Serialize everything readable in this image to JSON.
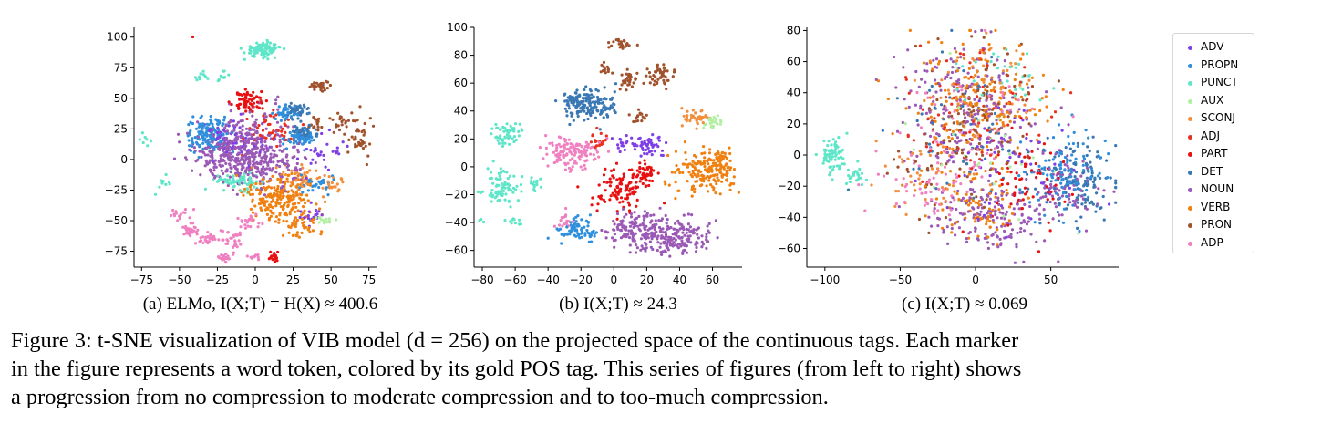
{
  "figure": {
    "caption_lines": [
      "Figure 3:  t-SNE visualization of VIB model (d = 256) on the projected space of the continuous tags. Each marker",
      "in the figure represents a word token, colored by its gold POS tag. This series of figures (from left to right) shows",
      "a progression from no compression to moderate compression and to too-much compression."
    ]
  },
  "legend": {
    "placement": "right",
    "entries": [
      {
        "label": "ADV",
        "color": "#7f3fe6"
      },
      {
        "label": "PROPN",
        "color": "#2f8fdc"
      },
      {
        "label": "PUNCT",
        "color": "#5fe6c8"
      },
      {
        "label": "AUX",
        "color": "#b0f0a0"
      },
      {
        "label": "SCONJ",
        "color": "#f28e3c"
      },
      {
        "label": "ADJ",
        "color": "#e8301e"
      },
      {
        "label": "PART",
        "color": "#e81010"
      },
      {
        "label": "DET",
        "color": "#3a78b4"
      },
      {
        "label": "NOUN",
        "color": "#9b59b6"
      },
      {
        "label": "VERB",
        "color": "#f08010"
      },
      {
        "label": "PRON",
        "color": "#a0522d"
      },
      {
        "label": "ADP",
        "color": "#f080c0"
      }
    ]
  },
  "chart_data": [
    {
      "type": "scatter",
      "caption": "(a) ELMo, I(X;T) = H(X) ≈ 400.6",
      "xlim": [
        -80,
        80
      ],
      "ylim": [
        -88,
        108
      ],
      "xticks": [
        -75,
        -50,
        -25,
        0,
        25,
        50,
        75
      ],
      "yticks": [
        -75,
        -50,
        -25,
        0,
        25,
        50,
        75,
        100
      ],
      "grid": false,
      "clusters": [
        {
          "tag": "PUNCT",
          "cx": 5,
          "cy": 90,
          "sx": 6,
          "sy": 3,
          "n": 110
        },
        {
          "tag": "PUNCT",
          "cx": -12,
          "cy": -18,
          "sx": 8,
          "sy": 3,
          "n": 70
        },
        {
          "tag": "PUNCT",
          "cx": -35,
          "cy": 67,
          "sx": 2,
          "sy": 2,
          "n": 12
        },
        {
          "tag": "PUNCT",
          "cx": -22,
          "cy": 68,
          "sx": 2,
          "sy": 2,
          "n": 10
        },
        {
          "tag": "PUNCT",
          "cx": -60,
          "cy": -20,
          "sx": 3,
          "sy": 3,
          "n": 10
        },
        {
          "tag": "PUNCT",
          "cx": -72,
          "cy": 15,
          "sx": 3,
          "sy": 3,
          "n": 8
        },
        {
          "tag": "PROPN",
          "cx": -30,
          "cy": 20,
          "sx": 8,
          "sy": 7,
          "n": 150
        },
        {
          "tag": "PROPN",
          "cx": 30,
          "cy": 18,
          "sx": 5,
          "sy": 4,
          "n": 60
        },
        {
          "tag": "PROPN",
          "cx": 20,
          "cy": 38,
          "sx": 4,
          "sy": 3,
          "n": 40
        },
        {
          "tag": "PROPN",
          "cx": 40,
          "cy": -20,
          "sx": 5,
          "sy": 4,
          "n": 30
        },
        {
          "tag": "DET",
          "cx": 28,
          "cy": 40,
          "sx": 4,
          "sy": 3,
          "n": 45
        },
        {
          "tag": "DET",
          "cx": 32,
          "cy": 22,
          "sx": 4,
          "sy": 3,
          "n": 40
        },
        {
          "tag": "NOUN",
          "cx": -15,
          "cy": 5,
          "sx": 12,
          "sy": 10,
          "n": 260
        },
        {
          "tag": "NOUN",
          "cx": 10,
          "cy": -5,
          "sx": 12,
          "sy": 10,
          "n": 130
        },
        {
          "tag": "NOUN",
          "cx": 0,
          "cy": 20,
          "sx": 14,
          "sy": 12,
          "n": 110
        },
        {
          "tag": "VERB",
          "cx": 15,
          "cy": -30,
          "sx": 12,
          "sy": 10,
          "n": 220
        },
        {
          "tag": "VERB",
          "cx": 32,
          "cy": -55,
          "sx": 6,
          "sy": 5,
          "n": 40
        },
        {
          "tag": "SCONJ",
          "cx": 30,
          "cy": -15,
          "sx": 6,
          "sy": 5,
          "n": 40
        },
        {
          "tag": "SCONJ",
          "cx": 52,
          "cy": -20,
          "sx": 5,
          "sy": 4,
          "n": 20
        },
        {
          "tag": "ADP",
          "cx": -43,
          "cy": -58,
          "sx": 3,
          "sy": 3,
          "n": 30
        },
        {
          "tag": "ADP",
          "cx": -30,
          "cy": -65,
          "sx": 3,
          "sy": 3,
          "n": 30
        },
        {
          "tag": "ADP",
          "cx": -15,
          "cy": -65,
          "sx": 4,
          "sy": 4,
          "n": 30
        },
        {
          "tag": "ADP",
          "cx": -20,
          "cy": -80,
          "sx": 4,
          "sy": 2,
          "n": 25
        },
        {
          "tag": "ADP",
          "cx": 0,
          "cy": -80,
          "sx": 2,
          "sy": 1,
          "n": 10
        },
        {
          "tag": "ADP",
          "cx": -50,
          "cy": -45,
          "sx": 3,
          "sy": 3,
          "n": 15
        },
        {
          "tag": "ADP",
          "cx": -5,
          "cy": -52,
          "sx": 4,
          "sy": 3,
          "n": 20
        },
        {
          "tag": "PART",
          "cx": -5,
          "cy": 48,
          "sx": 5,
          "sy": 4,
          "n": 70
        },
        {
          "tag": "PART",
          "cx": 12,
          "cy": -80,
          "sx": 2,
          "sy": 2,
          "n": 18
        },
        {
          "tag": "PART",
          "cx": -42,
          "cy": 100,
          "sx": 0.5,
          "sy": 0.5,
          "n": 1
        },
        {
          "tag": "ADJ",
          "cx": 10,
          "cy": 25,
          "sx": 10,
          "sy": 8,
          "n": 50
        },
        {
          "tag": "PRON",
          "cx": 43,
          "cy": 60,
          "sx": 3,
          "sy": 2,
          "n": 30
        },
        {
          "tag": "PRON",
          "cx": 68,
          "cy": 20,
          "sx": 4,
          "sy": 9,
          "n": 40
        },
        {
          "tag": "PRON",
          "cx": 55,
          "cy": 30,
          "sx": 3,
          "sy": 5,
          "n": 20
        },
        {
          "tag": "PRON",
          "cx": 40,
          "cy": 30,
          "sx": 3,
          "sy": 3,
          "n": 15
        },
        {
          "tag": "ADV",
          "cx": -15,
          "cy": 15,
          "sx": 10,
          "sy": 8,
          "n": 60
        },
        {
          "tag": "ADV",
          "cx": 38,
          "cy": -45,
          "sx": 4,
          "sy": 3,
          "n": 20
        },
        {
          "tag": "ADV",
          "cx": 45,
          "cy": 5,
          "sx": 10,
          "sy": 8,
          "n": 30
        },
        {
          "tag": "AUX",
          "cx": 45,
          "cy": -50,
          "sx": 3,
          "sy": 2,
          "n": 15
        }
      ]
    },
    {
      "type": "scatter",
      "caption": "(b) I(X;T) ≈ 24.3",
      "xlim": [
        -85,
        78
      ],
      "ylim": [
        -72,
        100
      ],
      "xticks": [
        -80,
        -60,
        -40,
        -20,
        0,
        20,
        40,
        60
      ],
      "yticks": [
        -60,
        -40,
        -20,
        0,
        20,
        40,
        60,
        80,
        100
      ],
      "grid": false,
      "clusters": [
        {
          "tag": "PUNCT",
          "cx": -65,
          "cy": 24,
          "sx": 4,
          "sy": 4,
          "n": 60
        },
        {
          "tag": "PUNCT",
          "cx": -68,
          "cy": -15,
          "sx": 5,
          "sy": 6,
          "n": 80
        },
        {
          "tag": "PUNCT",
          "cx": -48,
          "cy": -12,
          "sx": 2,
          "sy": 3,
          "n": 15
        },
        {
          "tag": "PUNCT",
          "cx": -60,
          "cy": -40,
          "sx": 3,
          "sy": 3,
          "n": 10
        },
        {
          "tag": "PUNCT",
          "cx": -80,
          "cy": -38,
          "sx": 1,
          "sy": 1,
          "n": 3
        },
        {
          "tag": "DET",
          "cx": -15,
          "cy": 45,
          "sx": 8,
          "sy": 6,
          "n": 140
        },
        {
          "tag": "DET",
          "cx": -25,
          "cy": 48,
          "sx": 3,
          "sy": 3,
          "n": 30
        },
        {
          "tag": "PRON",
          "cx": 5,
          "cy": 88,
          "sx": 3,
          "sy": 2,
          "n": 25
        },
        {
          "tag": "PRON",
          "cx": 28,
          "cy": 66,
          "sx": 4,
          "sy": 4,
          "n": 45
        },
        {
          "tag": "PRON",
          "cx": 10,
          "cy": 62,
          "sx": 3,
          "sy": 3,
          "n": 30
        },
        {
          "tag": "PRON",
          "cx": -5,
          "cy": 70,
          "sx": 2,
          "sy": 2,
          "n": 15
        },
        {
          "tag": "PRON",
          "cx": 15,
          "cy": 36,
          "sx": 3,
          "sy": 3,
          "n": 15
        },
        {
          "tag": "ADP",
          "cx": -25,
          "cy": 10,
          "sx": 8,
          "sy": 6,
          "n": 140
        },
        {
          "tag": "ADJ",
          "cx": -10,
          "cy": 18,
          "sx": 3,
          "sy": 3,
          "n": 20
        },
        {
          "tag": "PART",
          "cx": 5,
          "cy": -15,
          "sx": 8,
          "sy": 8,
          "n": 110
        },
        {
          "tag": "PART",
          "cx": 20,
          "cy": -5,
          "sx": 4,
          "sy": 3,
          "n": 40
        },
        {
          "tag": "ADV",
          "cx": 20,
          "cy": 15,
          "sx": 5,
          "sy": 4,
          "n": 50
        },
        {
          "tag": "ADV",
          "cx": 5,
          "cy": 15,
          "sx": 3,
          "sy": 3,
          "n": 15
        },
        {
          "tag": "SCONJ",
          "cx": 50,
          "cy": 35,
          "sx": 4,
          "sy": 3,
          "n": 40
        },
        {
          "tag": "AUX",
          "cx": 60,
          "cy": 33,
          "sx": 3,
          "sy": 3,
          "n": 25
        },
        {
          "tag": "VERB",
          "cx": 55,
          "cy": -5,
          "sx": 9,
          "sy": 8,
          "n": 160
        },
        {
          "tag": "VERB",
          "cx": 65,
          "cy": 5,
          "sx": 3,
          "sy": 5,
          "n": 40
        },
        {
          "tag": "NOUN",
          "cx": 35,
          "cy": -50,
          "sx": 12,
          "sy": 7,
          "n": 220
        },
        {
          "tag": "NOUN",
          "cx": 10,
          "cy": -45,
          "sx": 8,
          "sy": 6,
          "n": 90
        },
        {
          "tag": "PROPN",
          "cx": -25,
          "cy": -45,
          "sx": 5,
          "sy": 4,
          "n": 60
        },
        {
          "tag": "PROPN",
          "cx": -15,
          "cy": -48,
          "sx": 3,
          "sy": 3,
          "n": 20
        },
        {
          "tag": "ADP",
          "cx": -30,
          "cy": -40,
          "sx": 3,
          "sy": 3,
          "n": 15
        }
      ]
    },
    {
      "type": "scatter",
      "caption": "(c) I(X;T) ≈ 0.069",
      "xlim": [
        -112,
        95
      ],
      "ylim": [
        -72,
        82
      ],
      "xticks": [
        -100,
        -50,
        0,
        50
      ],
      "yticks": [
        -60,
        -40,
        -20,
        0,
        20,
        40,
        60,
        80
      ],
      "grid": false,
      "clusters": [
        {
          "tag": "PUNCT",
          "cx": -95,
          "cy": 0,
          "sx": 4,
          "sy": 6,
          "n": 70
        },
        {
          "tag": "PUNCT",
          "cx": -78,
          "cy": -13,
          "sx": 5,
          "sy": 3,
          "n": 25
        },
        {
          "tag": "NOUN",
          "cx": -5,
          "cy": 30,
          "sx": 22,
          "sy": 22,
          "n": 200
        },
        {
          "tag": "VERB",
          "cx": 0,
          "cy": 30,
          "sx": 22,
          "sy": 22,
          "n": 180
        },
        {
          "tag": "PRON",
          "cx": 5,
          "cy": 35,
          "sx": 20,
          "sy": 20,
          "n": 80
        },
        {
          "tag": "ADJ",
          "cx": 0,
          "cy": 25,
          "sx": 22,
          "sy": 22,
          "n": 80
        },
        {
          "tag": "DET",
          "cx": -10,
          "cy": 20,
          "sx": 22,
          "sy": 22,
          "n": 60
        },
        {
          "tag": "SCONJ",
          "cx": 5,
          "cy": 40,
          "sx": 20,
          "sy": 18,
          "n": 60
        },
        {
          "tag": "ADP",
          "cx": -10,
          "cy": 15,
          "sx": 25,
          "sy": 22,
          "n": 60
        },
        {
          "tag": "NOUN",
          "cx": 10,
          "cy": -40,
          "sx": 18,
          "sy": 12,
          "n": 160
        },
        {
          "tag": "VERB",
          "cx": 0,
          "cy": -30,
          "sx": 18,
          "sy": 12,
          "n": 80
        },
        {
          "tag": "DET",
          "cx": 65,
          "cy": -15,
          "sx": 13,
          "sy": 13,
          "n": 130
        },
        {
          "tag": "PROPN",
          "cx": 60,
          "cy": -10,
          "sx": 14,
          "sy": 14,
          "n": 110
        },
        {
          "tag": "NOUN",
          "cx": 60,
          "cy": -20,
          "sx": 13,
          "sy": 13,
          "n": 80
        },
        {
          "tag": "PART",
          "cx": 30,
          "cy": -20,
          "sx": 15,
          "sy": 15,
          "n": 70
        },
        {
          "tag": "ADV",
          "cx": 20,
          "cy": -10,
          "sx": 25,
          "sy": 20,
          "n": 60
        },
        {
          "tag": "ADP",
          "cx": -30,
          "cy": -20,
          "sx": 18,
          "sy": 15,
          "n": 60
        },
        {
          "tag": "PRON",
          "cx": -20,
          "cy": -5,
          "sx": 20,
          "sy": 18,
          "n": 50
        },
        {
          "tag": "AUX",
          "cx": 10,
          "cy": 0,
          "sx": 30,
          "sy": 25,
          "n": 30
        },
        {
          "tag": "PUNCT",
          "cx": 20,
          "cy": 50,
          "sx": 15,
          "sy": 10,
          "n": 30
        },
        {
          "tag": "SCONJ",
          "cx": -30,
          "cy": -10,
          "sx": 20,
          "sy": 18,
          "n": 40
        }
      ]
    }
  ]
}
